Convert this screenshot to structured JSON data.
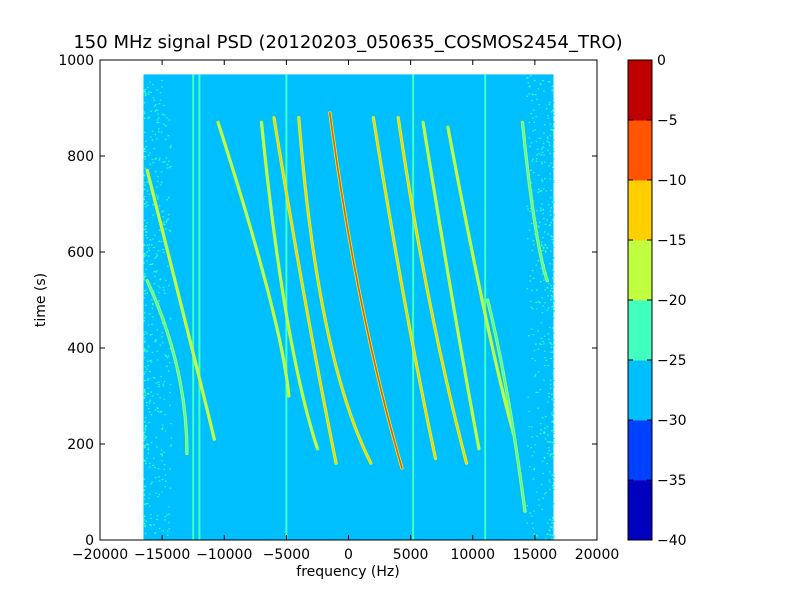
{
  "chart_data": {
    "type": "heatmap",
    "title": "150 MHz signal PSD (20120203_050635_COSMOS2454_TRO)",
    "xlabel": "frequency (Hz)",
    "ylabel": "time (s)",
    "xlim": [
      -20000,
      20000
    ],
    "ylim": [
      0,
      1000
    ],
    "x_ticks": [
      -20000,
      -15000,
      -10000,
      -5000,
      0,
      5000,
      10000,
      15000,
      20000
    ],
    "x_tick_labels": [
      "−20000",
      "−15000",
      "−10000",
      "−5000",
      "0",
      "5000",
      "10000",
      "15000",
      "20000"
    ],
    "y_ticks": [
      0,
      200,
      400,
      600,
      800,
      1000
    ],
    "y_tick_labels": [
      "0",
      "200",
      "400",
      "600",
      "800",
      "1000"
    ],
    "data_extent": {
      "x": [
        -16500,
        16500
      ],
      "y": [
        0,
        970
      ]
    },
    "background_level": -27.5,
    "colormap": "jet",
    "colorbar": {
      "range": [
        -40,
        0
      ],
      "levels": [
        -40,
        -35,
        -30,
        -25,
        -20,
        -15,
        -10,
        -5,
        0
      ],
      "tick_labels": [
        "0",
        "−5",
        "−10",
        "−15",
        "−20",
        "−25",
        "−30",
        "−35",
        "−40"
      ],
      "colors": [
        "#0000bf",
        "#0040ff",
        "#00bfff",
        "#40ffbf",
        "#bfff40",
        "#ffcf00",
        "#ff5500",
        "#bf0000"
      ]
    },
    "vertical_lines": [
      {
        "x": -12500,
        "y": [
          0,
          970
        ],
        "level": -22
      },
      {
        "x": -12000,
        "y": [
          0,
          970
        ],
        "level": -22
      },
      {
        "x": -5000,
        "y": [
          0,
          970
        ],
        "level": -21
      },
      {
        "x": 5200,
        "y": [
          0,
          970
        ],
        "level": -21
      },
      {
        "x": 11000,
        "y": [
          0,
          970
        ],
        "level": -23
      }
    ],
    "traces": [
      {
        "x_start": -16200,
        "y_start": 770,
        "x_mid": -12800,
        "y_mid": 420,
        "x_end": -10800,
        "y_end": 210,
        "level": -20
      },
      {
        "x_start": -16200,
        "y_start": 540,
        "x_mid": -13800,
        "y_mid": 360,
        "x_end": -13000,
        "y_end": 180,
        "level": -21
      },
      {
        "x_start": -10500,
        "y_start": 870,
        "x_mid": -6500,
        "y_mid": 520,
        "x_end": -4800,
        "y_end": 300,
        "level": -20
      },
      {
        "x_start": -7000,
        "y_start": 870,
        "x_mid": -5000,
        "y_mid": 470,
        "x_end": -2500,
        "y_end": 190,
        "level": -19
      },
      {
        "x_start": -6000,
        "y_start": 880,
        "x_mid": -3500,
        "y_mid": 500,
        "x_end": -1000,
        "y_end": 160,
        "level": -14
      },
      {
        "x_start": -4000,
        "y_start": 880,
        "x_mid": -1800,
        "y_mid": 450,
        "x_end": 1800,
        "y_end": 160,
        "level": -12
      },
      {
        "x_start": -1500,
        "y_start": 890,
        "x_mid": 1000,
        "y_mid": 500,
        "x_end": 4300,
        "y_end": 150,
        "level": -6
      },
      {
        "x_start": 2000,
        "y_start": 880,
        "x_mid": 4500,
        "y_mid": 500,
        "x_end": 7000,
        "y_end": 170,
        "level": -12
      },
      {
        "x_start": 4000,
        "y_start": 880,
        "x_mid": 6500,
        "y_mid": 500,
        "x_end": 9500,
        "y_end": 160,
        "level": -12
      },
      {
        "x_start": 6000,
        "y_start": 870,
        "x_mid": 8500,
        "y_mid": 480,
        "x_end": 10500,
        "y_end": 190,
        "level": -17
      },
      {
        "x_start": 8000,
        "y_start": 860,
        "x_mid": 11000,
        "y_mid": 470,
        "x_end": 13300,
        "y_end": 220,
        "level": -20
      },
      {
        "x_start": 11200,
        "y_start": 500,
        "x_mid": 12800,
        "y_mid": 300,
        "x_end": 14200,
        "y_end": 60,
        "level": -22
      },
      {
        "x_start": 14000,
        "y_start": 870,
        "x_mid": 15000,
        "y_mid": 660,
        "x_end": 16000,
        "y_end": 540,
        "level": -21
      }
    ],
    "grid": false,
    "legend": "none"
  }
}
